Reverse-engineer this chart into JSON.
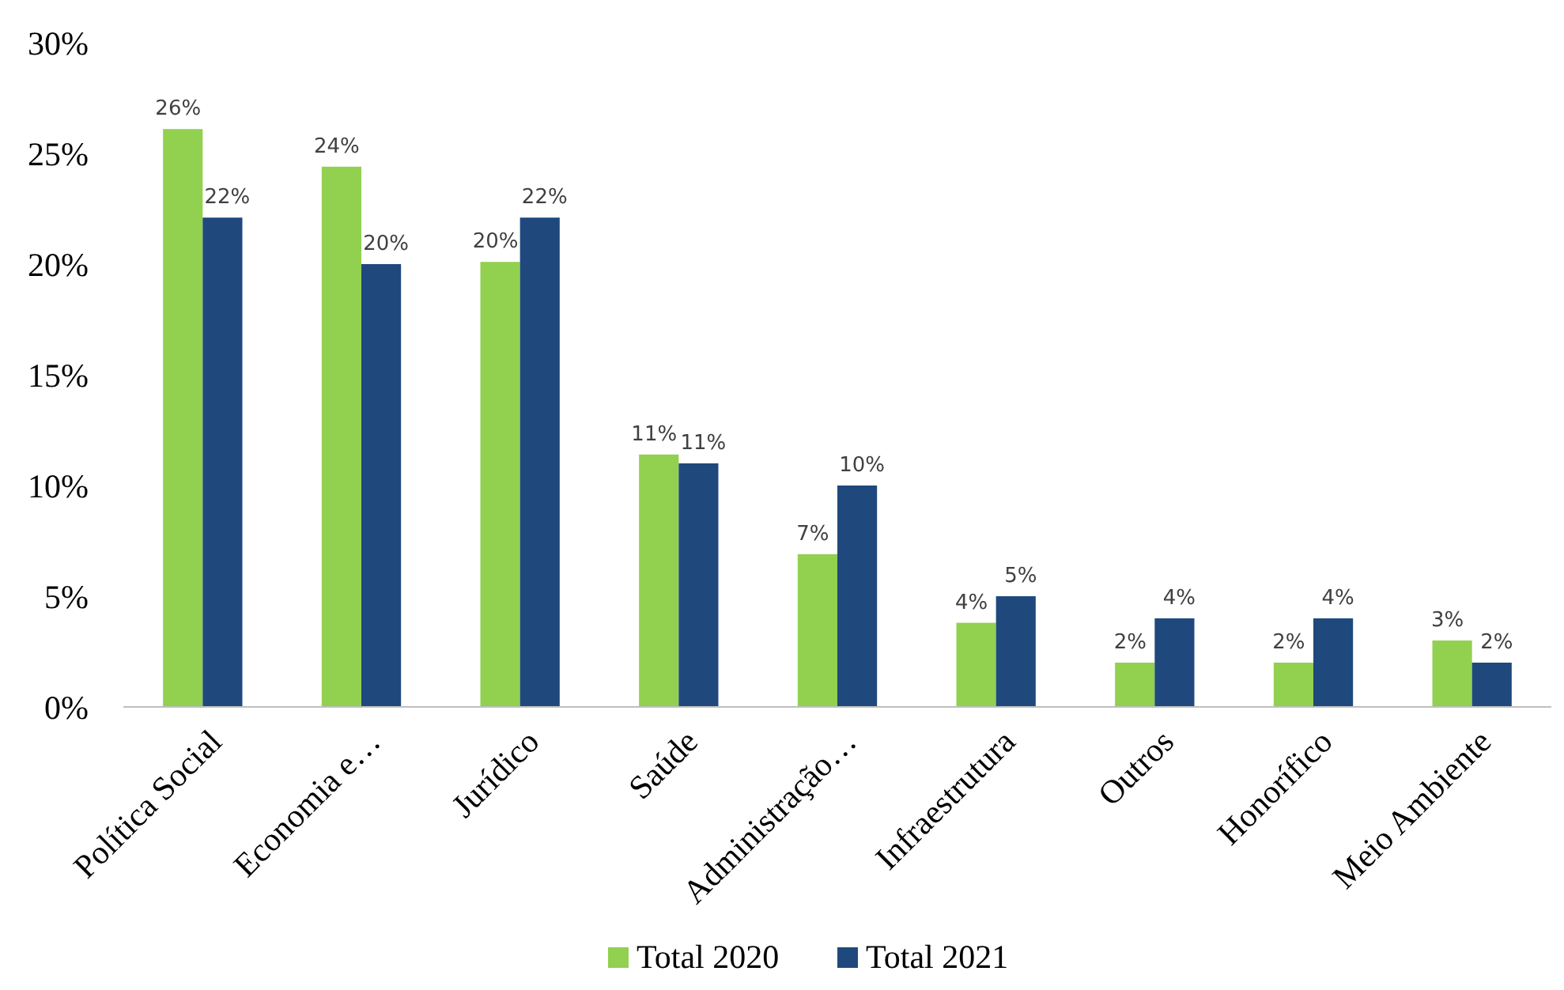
{
  "chart_data": {
    "type": "bar",
    "categories": [
      "Política Social",
      "Economia e…",
      "Jurídico",
      "Saúde",
      "Administração…",
      "Infraestrutura",
      "Outros",
      "Honorífico",
      "Meio Ambiente"
    ],
    "series": [
      {
        "name": "Total 2020",
        "color": "#92d050",
        "values": [
          26.1,
          24.4,
          20.1,
          11.4,
          6.9,
          3.8,
          2,
          2,
          3
        ],
        "value_labels": [
          "26%",
          "24%",
          "20%",
          "11%",
          "7%",
          "4%",
          "2%",
          "2%",
          "3%"
        ]
      },
      {
        "name": "Total 2021",
        "color": "#1f497d",
        "values": [
          22.1,
          20,
          22.1,
          11,
          10,
          5,
          4,
          4,
          2
        ],
        "value_labels": [
          "22%",
          "20%",
          "22%",
          "11%",
          "10%",
          "5%",
          "4%",
          "4%",
          "2%"
        ]
      }
    ],
    "ylim": [
      0,
      30
    ],
    "yticks": [
      {
        "value": 0,
        "label": "0%"
      },
      {
        "value": 5,
        "label": "5%"
      },
      {
        "value": 10,
        "label": "10%"
      },
      {
        "value": 15,
        "label": "15%"
      },
      {
        "value": 20,
        "label": "20%"
      },
      {
        "value": 25,
        "label": "25%"
      },
      {
        "value": 30,
        "label": "30%"
      }
    ],
    "grid": false,
    "legend": "bottom"
  }
}
